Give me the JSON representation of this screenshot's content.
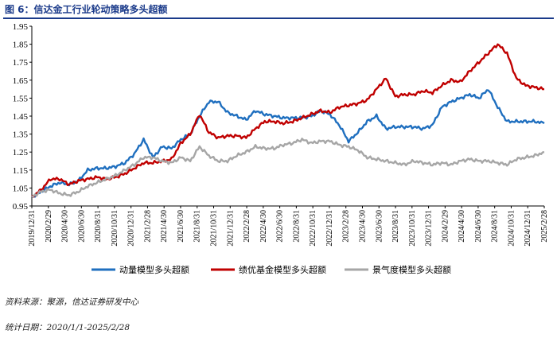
{
  "chart_data": {
    "type": "line",
    "title": "图 6：信达金工行业轮动策略多头超额",
    "y_ticks": [
      "0.95",
      "1.05",
      "1.15",
      "1.25",
      "1.35",
      "1.45",
      "1.55",
      "1.65",
      "1.75",
      "1.85",
      "1.95"
    ],
    "ylim": [
      0.95,
      1.95
    ],
    "x_ticks": [
      "2019/12/31",
      "2020/2/29",
      "2020/4/30",
      "2020/6/30",
      "2020/8/31",
      "2020/10/31",
      "2020/12/31",
      "2021/2/28",
      "2021/4/30",
      "2021/6/30",
      "2021/8/31",
      "2021/10/31",
      "2021/12/31",
      "2022/2/28",
      "2022/4/30",
      "2022/6/30",
      "2022/8/31",
      "2022/10/31",
      "2022/12/31",
      "2023/2/28",
      "2023/4/30",
      "2023/6/30",
      "2023/8/31",
      "2023/10/31",
      "2023/12/31",
      "2024/2/29",
      "2024/4/30",
      "2024/6/30",
      "2024/8/31",
      "2024/10/31",
      "2024/12/31",
      "2025/2/28"
    ],
    "grid": false,
    "legend_position": "bottom",
    "series": [
      {
        "name": "动量模型多头超额",
        "color": "#1f6fbf",
        "values": [
          1.0,
          1.03,
          1.06,
          1.08,
          1.07,
          1.09,
          1.15,
          1.16,
          1.16,
          1.17,
          1.19,
          1.24,
          1.32,
          1.22,
          1.28,
          1.27,
          1.32,
          1.35,
          1.45,
          1.53,
          1.53,
          1.47,
          1.45,
          1.43,
          1.48,
          1.46,
          1.45,
          1.44,
          1.44,
          1.44,
          1.45,
          1.48,
          1.46,
          1.4,
          1.31,
          1.36,
          1.42,
          1.45,
          1.38,
          1.39,
          1.39,
          1.39,
          1.38,
          1.4,
          1.5,
          1.53,
          1.55,
          1.57,
          1.55,
          1.6,
          1.5,
          1.42,
          1.42,
          1.42,
          1.42,
          1.41
        ]
      },
      {
        "name": "绩优基金模型多头超额",
        "color": "#c00000",
        "values": [
          1.0,
          1.04,
          1.1,
          1.1,
          1.07,
          1.09,
          1.1,
          1.11,
          1.1,
          1.11,
          1.13,
          1.16,
          1.19,
          1.19,
          1.2,
          1.21,
          1.3,
          1.35,
          1.46,
          1.36,
          1.33,
          1.34,
          1.34,
          1.33,
          1.38,
          1.42,
          1.42,
          1.41,
          1.42,
          1.44,
          1.46,
          1.48,
          1.47,
          1.5,
          1.51,
          1.52,
          1.54,
          1.6,
          1.66,
          1.56,
          1.57,
          1.57,
          1.59,
          1.58,
          1.62,
          1.65,
          1.64,
          1.7,
          1.75,
          1.8,
          1.85,
          1.8,
          1.66,
          1.62,
          1.61,
          1.6
        ]
      },
      {
        "name": "景气度模型多头超额",
        "color": "#a6a6a6",
        "values": [
          1.0,
          1.03,
          1.04,
          1.02,
          1.01,
          1.03,
          1.06,
          1.08,
          1.1,
          1.12,
          1.15,
          1.18,
          1.22,
          1.22,
          1.2,
          1.19,
          1.22,
          1.2,
          1.28,
          1.23,
          1.2,
          1.2,
          1.23,
          1.25,
          1.28,
          1.27,
          1.27,
          1.29,
          1.3,
          1.32,
          1.3,
          1.31,
          1.31,
          1.29,
          1.28,
          1.26,
          1.22,
          1.21,
          1.2,
          1.19,
          1.18,
          1.2,
          1.19,
          1.18,
          1.19,
          1.18,
          1.2,
          1.21,
          1.2,
          1.2,
          1.19,
          1.18,
          1.21,
          1.22,
          1.23,
          1.25
        ]
      }
    ]
  },
  "source_note": "资料来源：聚源，信达证券研发中心",
  "date_note": "统计日期：2020/1/1-2025/2/28"
}
